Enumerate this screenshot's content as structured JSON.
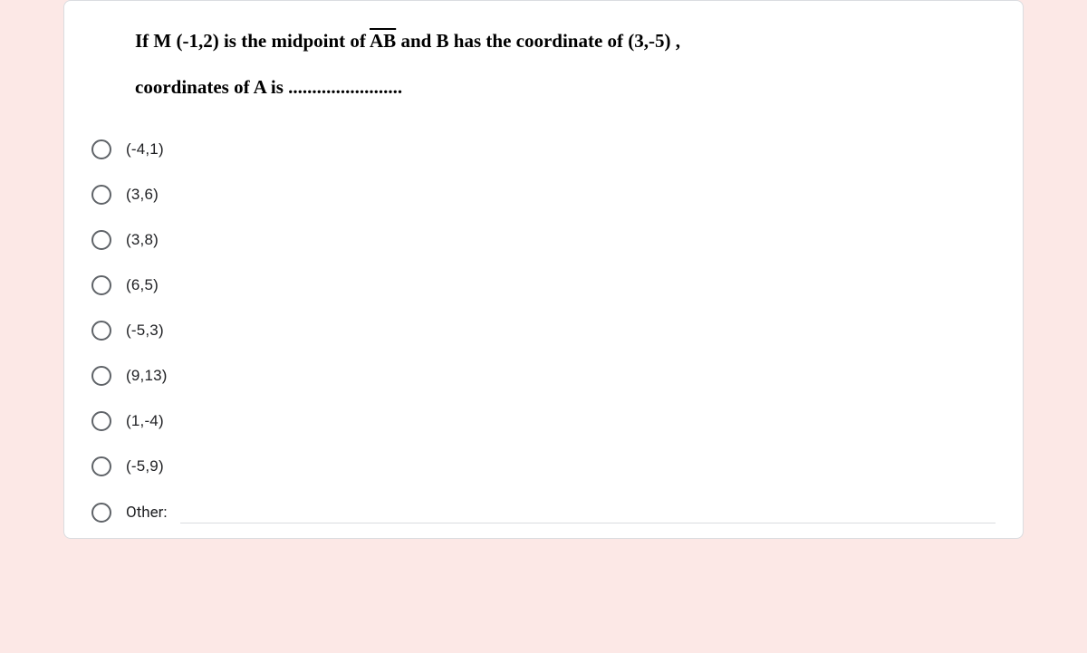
{
  "background_color": "#fce8e6",
  "card": {
    "background_color": "#ffffff",
    "border_color": "#dadce0"
  },
  "question": {
    "prefix": "If M (-1,2) is the midpoint of ",
    "segment": "AB",
    "middle": " and B  has the coordinate of  (3,-5) ,",
    "line2": "coordinates of A  is ........................"
  },
  "options": [
    {
      "label": "(-4,1)"
    },
    {
      "label": "(3,6)"
    },
    {
      "label": "(3,8)"
    },
    {
      "label": "(6,5)"
    },
    {
      "label": "(-5,3)"
    },
    {
      "label": "(9,13)"
    },
    {
      "label": "(1,-4)"
    },
    {
      "label": "(-5,9)"
    }
  ],
  "other": {
    "label": "Other:",
    "value": ""
  }
}
